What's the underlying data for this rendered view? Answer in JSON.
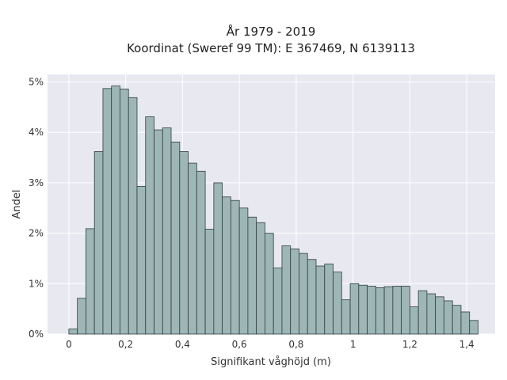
{
  "chart_data": {
    "type": "bar",
    "title_line1": "År 1979 - 2019",
    "title_line2": "Koordinat (Sweref 99 TM): E 367469, N 6139113",
    "xlabel": "Signifikant våghöjd (m)",
    "ylabel": "Andel",
    "xlim": [
      -0.075,
      1.5
    ],
    "ylim": [
      0,
      5.15
    ],
    "bin_width": 0.03,
    "x_ticks": [
      {
        "value": 0,
        "label": "0"
      },
      {
        "value": 0.2,
        "label": "0,2"
      },
      {
        "value": 0.4,
        "label": "0,4"
      },
      {
        "value": 0.6,
        "label": "0,6"
      },
      {
        "value": 0.8,
        "label": "0,8"
      },
      {
        "value": 1.0,
        "label": "1"
      },
      {
        "value": 1.2,
        "label": "1,2"
      },
      {
        "value": 1.4,
        "label": "1,4"
      }
    ],
    "y_ticks": [
      {
        "value": 0,
        "label": "0%"
      },
      {
        "value": 1,
        "label": "1%"
      },
      {
        "value": 2,
        "label": "2%"
      },
      {
        "value": 3,
        "label": "3%"
      },
      {
        "value": 4,
        "label": "4%"
      },
      {
        "value": 5,
        "label": "5%"
      }
    ],
    "bin_starts": [
      0,
      0.03,
      0.06,
      0.09,
      0.12,
      0.15,
      0.18,
      0.21,
      0.24,
      0.27,
      0.3,
      0.33,
      0.36,
      0.39,
      0.42,
      0.45,
      0.48,
      0.51,
      0.54,
      0.57,
      0.6,
      0.63,
      0.66,
      0.69,
      0.72,
      0.75,
      0.78,
      0.81,
      0.84,
      0.87,
      0.9,
      0.93,
      0.96,
      0.99,
      1.02,
      1.05,
      1.08,
      1.11,
      1.14,
      1.17,
      1.2,
      1.23,
      1.26,
      1.29,
      1.32,
      1.35,
      1.38,
      1.41
    ],
    "values": [
      0.1,
      0.71,
      2.09,
      3.62,
      4.87,
      4.92,
      4.86,
      4.69,
      2.93,
      4.31,
      4.05,
      4.09,
      3.81,
      3.62,
      3.39,
      3.23,
      2.08,
      3.0,
      2.72,
      2.65,
      2.5,
      2.32,
      2.21,
      2.0,
      1.31,
      1.75,
      1.69,
      1.6,
      1.48,
      1.35,
      1.39,
      1.23,
      0.68,
      1.0,
      0.97,
      0.95,
      0.92,
      0.94,
      0.95,
      0.95,
      0.54,
      0.86,
      0.8,
      0.74,
      0.66,
      0.57,
      0.44,
      0.27
    ]
  }
}
